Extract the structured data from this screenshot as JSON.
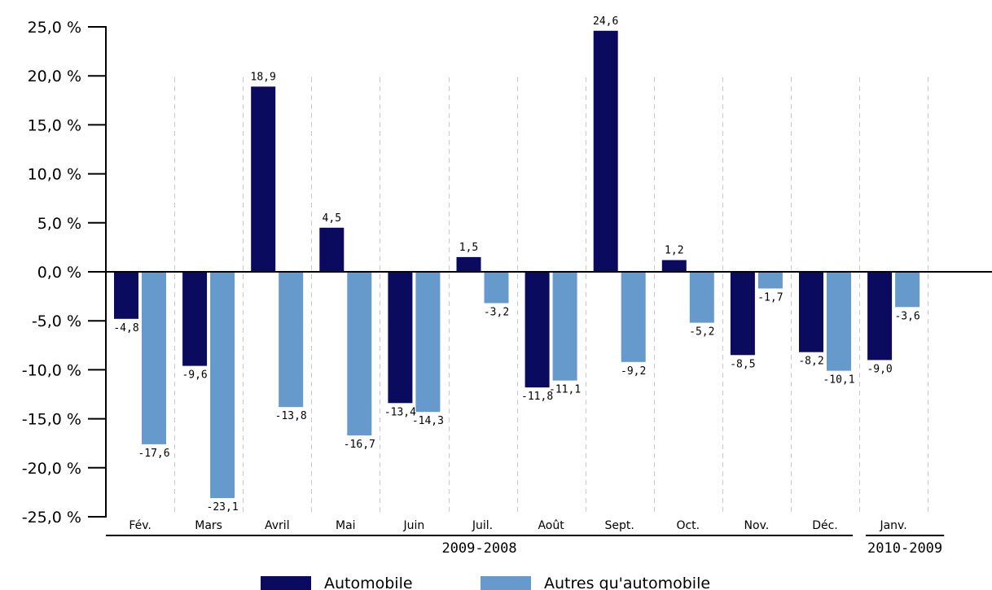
{
  "chart_data": {
    "type": "bar",
    "categories": [
      "Fév.",
      "Mars",
      "Avril",
      "Mai",
      "Juin",
      "Juil.",
      "Août",
      "Sept.",
      "Oct.",
      "Nov.",
      "Déc.",
      "Janv."
    ],
    "series": [
      {
        "name": "Automobile",
        "color": "#0a0a5e",
        "values": [
          -4.8,
          -9.6,
          18.9,
          4.5,
          -13.4,
          1.5,
          -11.8,
          24.6,
          1.2,
          -8.5,
          -8.2,
          -9.0
        ],
        "labels": [
          "-4,8",
          "-9,6",
          "18,9",
          "4,5",
          "-13,4",
          "1,5",
          "-11,8",
          "24,6",
          "1,2",
          "-8,5",
          "-8,2",
          "-9,0"
        ]
      },
      {
        "name": "Autres qu'automobile",
        "color": "#6699cc",
        "values": [
          -17.6,
          -23.1,
          -13.8,
          -16.7,
          -14.3,
          -3.2,
          -11.1,
          -9.2,
          -5.2,
          -1.7,
          -10.1,
          -3.6
        ],
        "labels": [
          "-17,6",
          "-23,1",
          "-13,8",
          "-16,7",
          "-14,3",
          "-3,2",
          "-11,1",
          "-9,2",
          "-5,2",
          "-1,7",
          "-10,1",
          "-3,6"
        ]
      }
    ],
    "ylim": [
      -25,
      25
    ],
    "yticks": [
      25,
      20,
      15,
      10,
      5,
      0,
      -5,
      -10,
      -15,
      -20,
      -25
    ],
    "ytick_labels": [
      "25,0 %",
      "20,0 %",
      "15,0 %",
      "10,0 %",
      "5,0 %",
      "0,0 %",
      "-5,0 %",
      "-10,0 %",
      "-15,0 %",
      "-20,0 %",
      "-25,0 %"
    ],
    "groups": [
      {
        "label": "2009-2008",
        "categories": 11
      },
      {
        "label": "2010-2009",
        "categories": 1
      }
    ],
    "legend_position": "bottom",
    "grid": "vertical dashed separators"
  }
}
